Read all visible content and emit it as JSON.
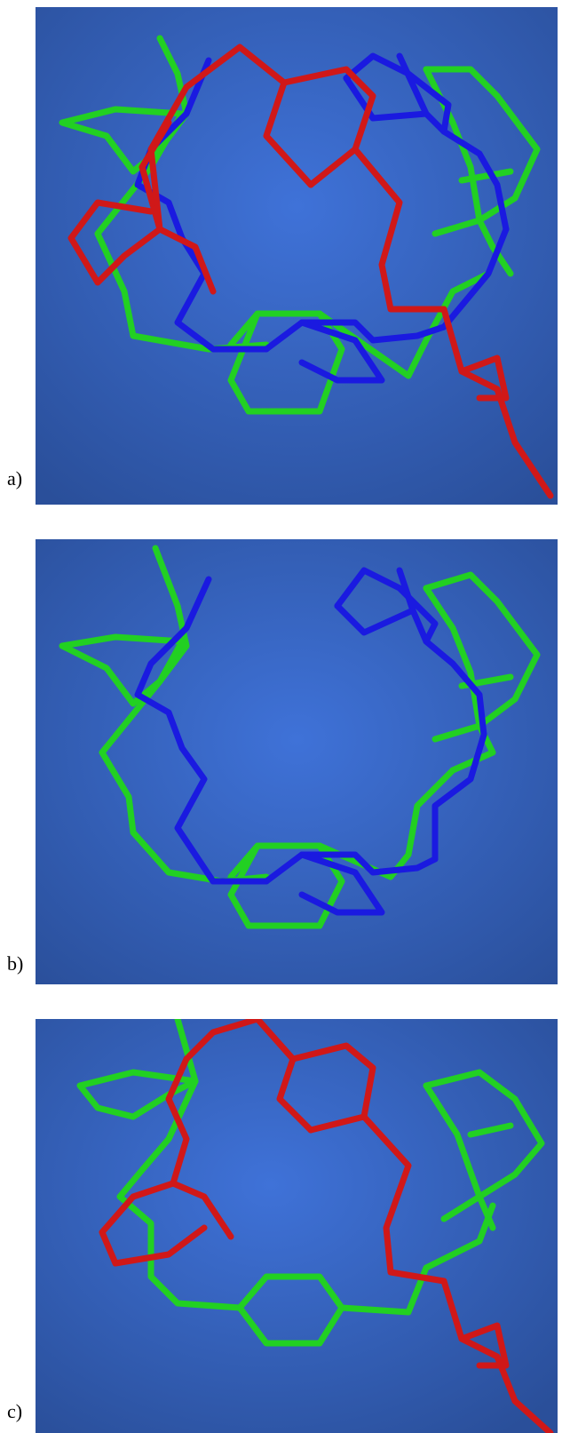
{
  "panels": [
    {
      "label": "a)",
      "chains": [
        "red",
        "green",
        "blue"
      ]
    },
    {
      "label": "b)",
      "chains": [
        "green",
        "blue"
      ]
    },
    {
      "label": "c)",
      "chains": [
        "red",
        "green"
      ]
    }
  ],
  "colors": {
    "background_center": "#3a6ad0",
    "background_edge": "#2a4f9a",
    "red": "#d01818",
    "green": "#22d022",
    "blue": "#1a1ae0"
  }
}
